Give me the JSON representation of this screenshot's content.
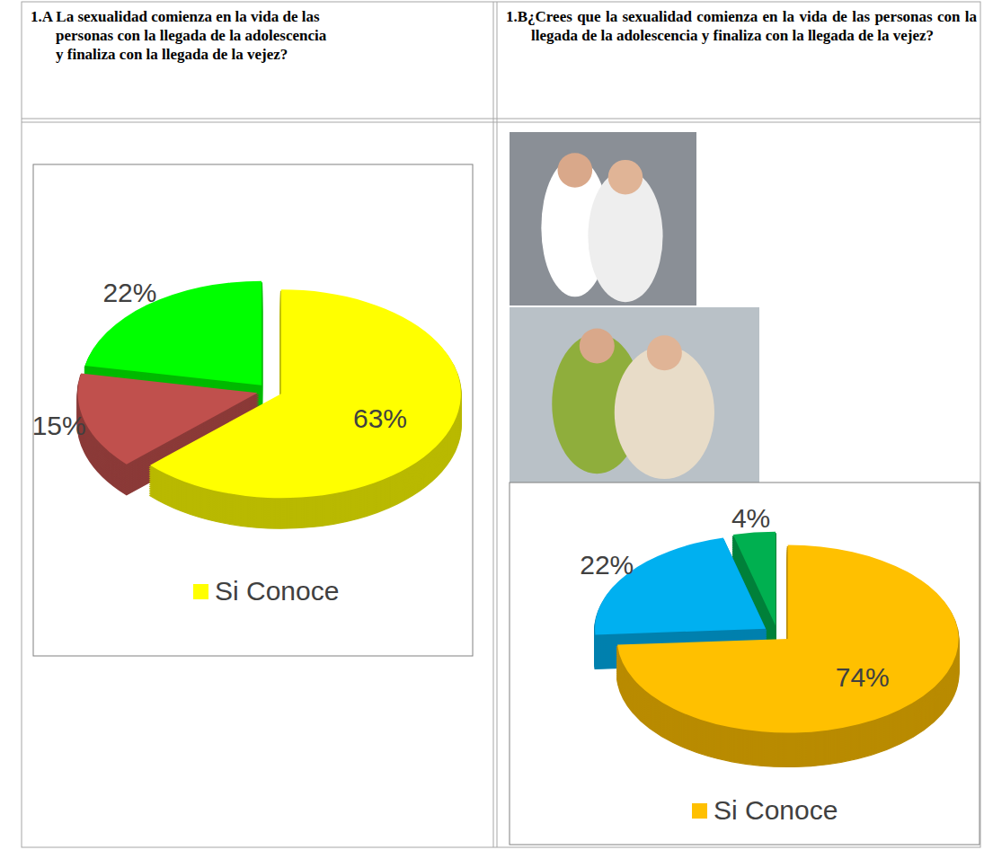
{
  "chart_data": [
    {
      "type": "pie",
      "title": "1.A La sexualidad comienza en la vida de las personas con la llegada de la adolescencia y finaliza con la llegada de la vejez?",
      "categories": [
        "Si Conoce",
        null,
        null
      ],
      "values": [
        63,
        15,
        22
      ],
      "value_labels": [
        "63%",
        "15%",
        "22%"
      ],
      "colors": [
        "#ffff00",
        "#c0504d",
        "#00ff00"
      ],
      "legend": "bottom",
      "data_labels": true
    },
    {
      "type": "pie",
      "title": "1.B¿Crees que la sexualidad comienza en la vida de las personas con la llegada de la adolescencia y finaliza con la llegada de la vejez?",
      "categories": [
        "Si Conoce",
        null,
        null
      ],
      "values": [
        74,
        22,
        4
      ],
      "value_labels": [
        "74%",
        "22%",
        "4%"
      ],
      "colors": [
        "#ffc000",
        "#00b0f0",
        "#00b050"
      ],
      "legend": "bottom",
      "data_labels": true
    }
  ]
}
